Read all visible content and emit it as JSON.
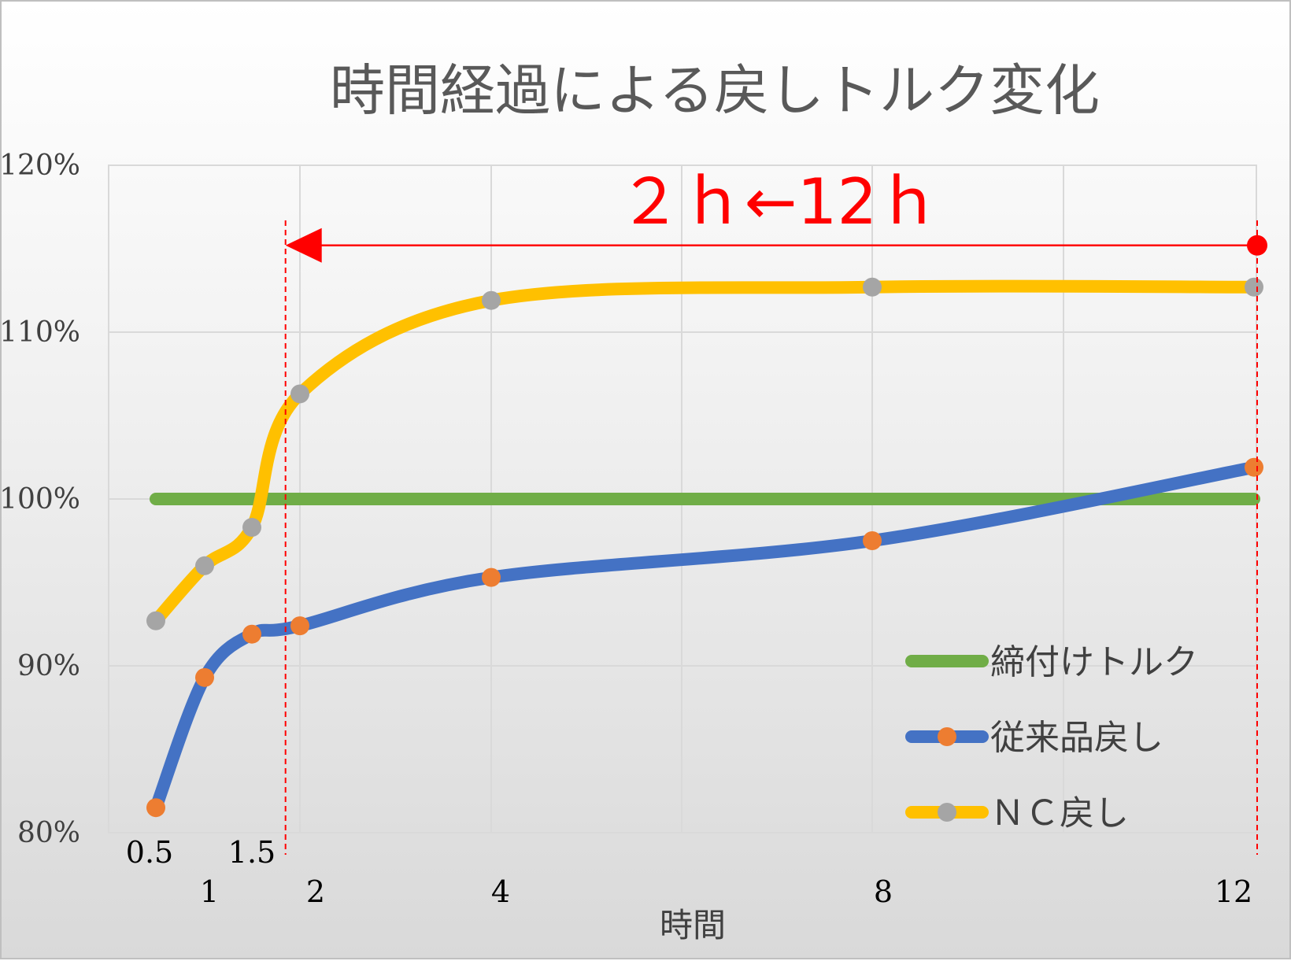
{
  "chart_data": {
    "type": "line",
    "title": "時間経過による戻しトルク変化",
    "xlabel": "時間",
    "ylabel": "",
    "x_ticks": [
      "0.5",
      "1",
      "1.5",
      "2",
      "4",
      "8",
      "12"
    ],
    "ylim": [
      0.8,
      1.2
    ],
    "y_ticks": [
      "80%",
      "90%",
      "100%",
      "110%",
      "120%"
    ],
    "grid": true,
    "legend_position": "bottom-right",
    "series": [
      {
        "name": "締付けトルク",
        "color": "#70ad47",
        "x": [
          0.5,
          12
        ],
        "values": [
          1.0,
          1.0
        ],
        "markers": false
      },
      {
        "name": "従来品戻し",
        "color": "#4472c4",
        "marker_color": "#ed7d31",
        "x": [
          0.5,
          1,
          1.5,
          2,
          4,
          8,
          12
        ],
        "values": [
          0.815,
          0.893,
          0.919,
          0.924,
          0.953,
          0.975,
          1.019
        ],
        "markers": true
      },
      {
        "name": "ＮＣ戻し",
        "color": "#ffc000",
        "marker_color": "#a5a5a5",
        "x": [
          0.5,
          1,
          1.5,
          2,
          4,
          8,
          12
        ],
        "values": [
          0.927,
          0.96,
          0.983,
          1.063,
          1.119,
          1.127,
          1.127
        ],
        "markers": true
      }
    ],
    "annotations": {
      "text": "２ｈ←12ｈ",
      "color": "#ff0000",
      "arrow_from_x": 12,
      "arrow_to_x": 1.85,
      "arrow_y": 1.152
    }
  }
}
